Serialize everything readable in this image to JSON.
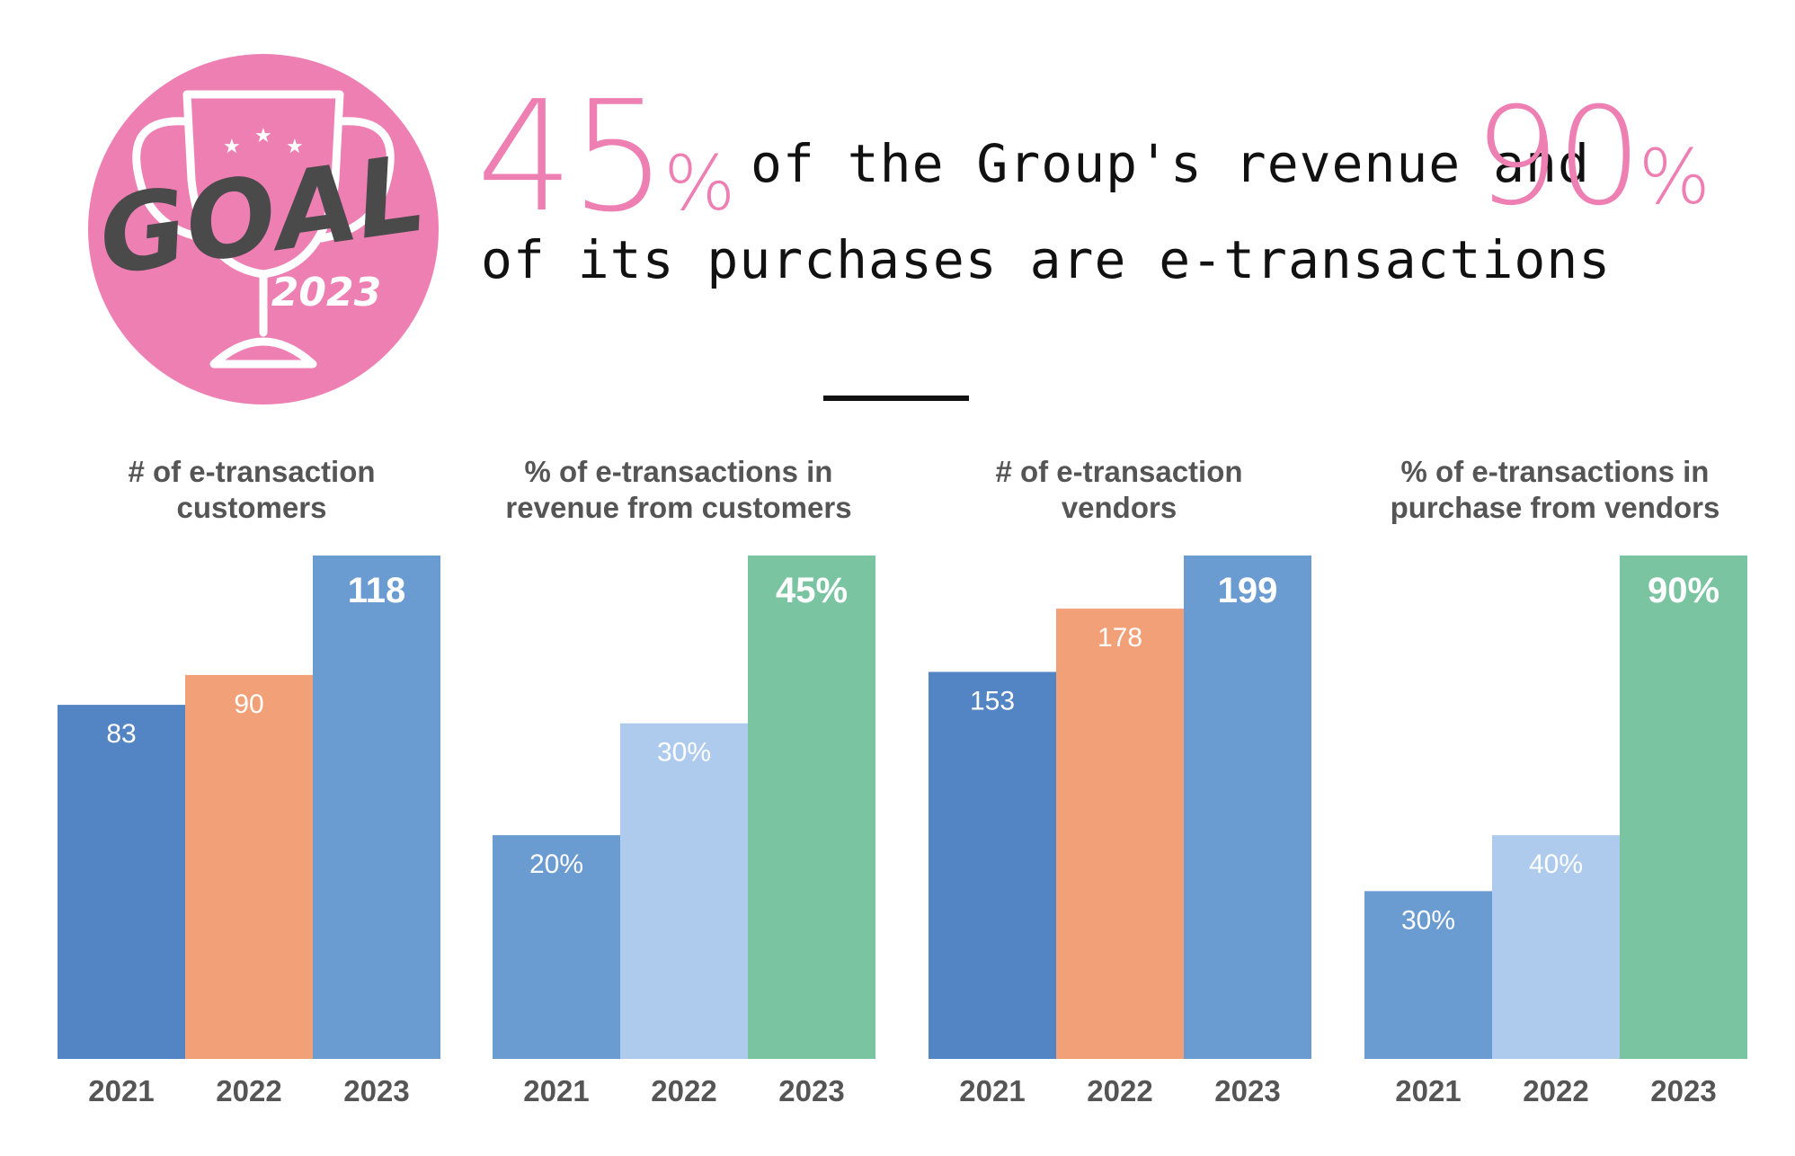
{
  "logo": {
    "word": "GOAL",
    "year": "2023"
  },
  "headline": {
    "pct1": "45",
    "pct1_sign": "%",
    "line1": "of the Group's revenue and",
    "pct2": "90",
    "pct2_sign": "%",
    "line2": "of its purchases are e-transactions"
  },
  "colors": {
    "pink": "#ee7fb3",
    "blue_dark": "#5385c5",
    "blue_mid": "#6a9bd1",
    "blue_light": "#aecbed",
    "orange": "#f2a078",
    "green": "#7bc4a2",
    "axis_text": "#555555"
  },
  "chart_data": [
    {
      "type": "bar",
      "title_lines": [
        "# of e-transaction",
        "customers"
      ],
      "categories": [
        "2021",
        "2022",
        "2023"
      ],
      "values": [
        83,
        90,
        118
      ],
      "labels": [
        "83",
        "90",
        "118"
      ],
      "bar_colors": [
        "#5385c5",
        "#f2a078",
        "#6a9bd1"
      ],
      "ylim": [
        0,
        118
      ]
    },
    {
      "type": "bar",
      "title_lines": [
        "% of e-transactions in",
        "revenue from customers"
      ],
      "categories": [
        "2021",
        "2022",
        "2023"
      ],
      "values": [
        20,
        30,
        45
      ],
      "labels": [
        "20%",
        "30%",
        "45%"
      ],
      "bar_colors": [
        "#6a9bd1",
        "#aecbed",
        "#7bc4a2"
      ],
      "ylim": [
        0,
        45
      ]
    },
    {
      "type": "bar",
      "title_lines": [
        "# of e-transaction",
        "vendors"
      ],
      "categories": [
        "2021",
        "2022",
        "2023"
      ],
      "values": [
        153,
        178,
        199
      ],
      "labels": [
        "153",
        "178",
        "199"
      ],
      "bar_colors": [
        "#5385c5",
        "#f2a078",
        "#6a9bd1"
      ],
      "ylim": [
        0,
        199
      ]
    },
    {
      "type": "bar",
      "title_lines": [
        "% of e-transactions in",
        "purchase from vendors"
      ],
      "categories": [
        "2021",
        "2022",
        "2023"
      ],
      "values": [
        30,
        40,
        90
      ],
      "labels": [
        "30%",
        "40%",
        "90%"
      ],
      "bar_colors": [
        "#6a9bd1",
        "#aecbed",
        "#7bc4a2"
      ],
      "ylim": [
        0,
        90
      ]
    }
  ]
}
